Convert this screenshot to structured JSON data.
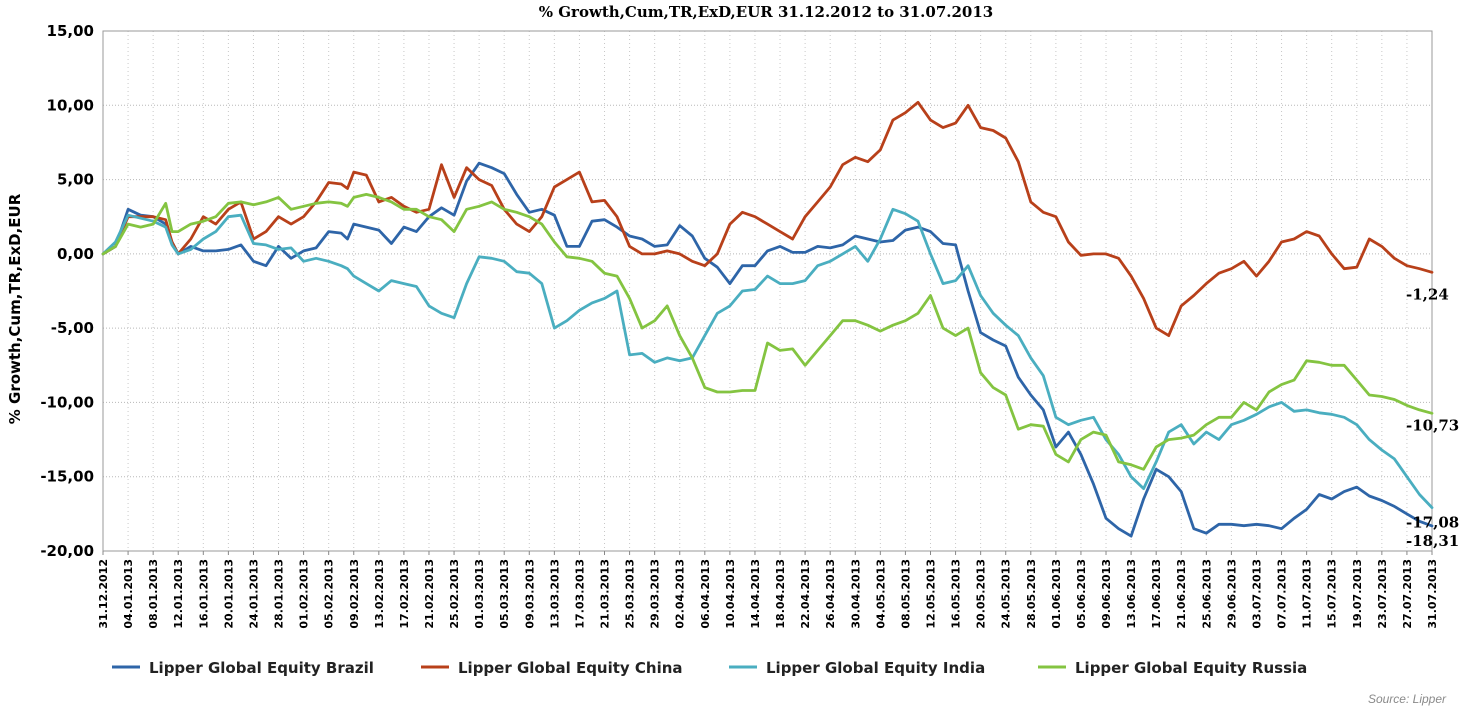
{
  "chart_data": {
    "type": "line",
    "title": "% Growth,Cum,TR,ExD,EUR 31.12.2012 to 31.07.2013",
    "ylabel": "% Growth,Cum,TR,ExD,EUR",
    "xlabel": "",
    "ylim": [
      -20,
      15
    ],
    "yticks": [
      15,
      10,
      5,
      0,
      -5,
      -10,
      -15,
      -20
    ],
    "ytick_labels": [
      "15,00",
      "10,00",
      "5,00",
      "0,00",
      "-5,00",
      "-10,00",
      "-15,00",
      "-20,00"
    ],
    "x_start_day": 0,
    "x_end_day": 212,
    "xtick_labels": [
      "31.12.2012",
      "04.01.2013",
      "08.01.2013",
      "12.01.2013",
      "16.01.2013",
      "20.01.2013",
      "24.01.2013",
      "28.01.2013",
      "01.02.2013",
      "05.02.2013",
      "09.02.2013",
      "13.02.2013",
      "17.02.2013",
      "21.02.2013",
      "25.02.2013",
      "01.03.2013",
      "05.03.2013",
      "09.03.2013",
      "13.03.2013",
      "17.03.2013",
      "21.03.2013",
      "25.03.2013",
      "29.03.2013",
      "02.04.2013",
      "06.04.2013",
      "10.04.2013",
      "14.04.2013",
      "18.04.2013",
      "22.04.2013",
      "26.04.2013",
      "30.04.2013",
      "04.05.2013",
      "08.05.2013",
      "12.05.2013",
      "16.05.2013",
      "20.05.2013",
      "24.05.2013",
      "28.05.2013",
      "01.06.2013",
      "05.06.2013",
      "09.06.2013",
      "13.06.2013",
      "17.06.2013",
      "21.06.2013",
      "25.06.2013",
      "29.06.2013",
      "03.07.2013",
      "07.07.2013",
      "11.07.2013",
      "15.07.2013",
      "19.07.2013",
      "23.07.2013",
      "27.07.2013",
      "31.07.2013"
    ],
    "grid": true,
    "legend_position": "bottom",
    "series": [
      {
        "name": "Lipper Global Equity Brazil",
        "color": "#2e65a8",
        "end_label": "-18,31",
        "x": [
          0,
          2,
          4,
          6,
          8,
          10,
          11,
          12,
          14,
          16,
          18,
          20,
          22,
          24,
          26,
          28,
          30,
          32,
          34,
          36,
          38,
          39,
          40,
          42,
          44,
          46,
          48,
          50,
          52,
          54,
          56,
          58,
          60,
          62,
          64,
          66,
          68,
          70,
          72,
          74,
          76,
          78,
          80,
          82,
          84,
          86,
          88,
          90,
          92,
          94,
          96,
          98,
          100,
          102,
          104,
          106,
          108,
          110,
          112,
          114,
          116,
          118,
          120,
          122,
          124,
          126,
          128,
          130,
          132,
          134,
          136,
          138,
          140,
          142,
          144,
          146,
          148,
          150,
          152,
          154,
          156,
          158,
          160,
          162,
          164,
          166,
          168,
          170,
          172,
          174,
          176,
          178,
          180,
          182,
          184,
          186,
          188,
          190,
          192,
          194,
          196,
          198,
          200,
          202,
          204,
          206,
          208,
          210,
          212
        ],
        "y": [
          0,
          0.5,
          3.0,
          2.6,
          2.5,
          2.0,
          0.8,
          0,
          0.5,
          0.2,
          0.2,
          0.3,
          0.6,
          -0.5,
          -0.8,
          0.5,
          -0.3,
          0.2,
          0.4,
          1.5,
          1.4,
          1.0,
          2.0,
          1.8,
          1.6,
          0.7,
          1.8,
          1.5,
          2.5,
          3.1,
          2.6,
          4.9,
          6.1,
          5.8,
          5.4,
          4.0,
          2.8,
          3.0,
          2.6,
          0.5,
          0.5,
          2.2,
          2.3,
          1.8,
          1.2,
          1.0,
          0.5,
          0.6,
          1.9,
          1.2,
          -0.3,
          -0.9,
          -2.0,
          -0.8,
          -0.8,
          0.2,
          0.5,
          0.1,
          0.1,
          0.5,
          0.4,
          0.6,
          1.2,
          1.0,
          0.8,
          0.9,
          1.6,
          1.8,
          1.5,
          0.7,
          0.6,
          -2.5,
          -5.3,
          -5.8,
          -6.2,
          -8.3,
          -9.5,
          -10.5,
          -13.0,
          -12.0,
          -13.5,
          -15.5,
          -17.8,
          -18.5,
          -19.0,
          -16.5,
          -14.5,
          -15.0,
          -16.0,
          -18.5,
          -18.8,
          -18.2,
          -18.2,
          -18.3,
          -18.2,
          -18.3,
          -18.5,
          -17.8,
          -17.2,
          -16.2,
          -16.5,
          -16.0,
          -15.7,
          -16.3,
          -16.6,
          -17.0,
          -17.5,
          -18.0,
          -18.31
        ]
      },
      {
        "name": "Lipper Global Equity China",
        "color": "#b8401a",
        "end_label": "-1,24",
        "x": [
          0,
          2,
          4,
          6,
          8,
          10,
          11,
          12,
          14,
          16,
          18,
          20,
          22,
          24,
          26,
          28,
          30,
          32,
          34,
          36,
          38,
          39,
          40,
          42,
          44,
          46,
          48,
          50,
          52,
          54,
          56,
          58,
          60,
          62,
          64,
          66,
          68,
          70,
          72,
          74,
          76,
          78,
          80,
          82,
          84,
          86,
          88,
          90,
          92,
          94,
          96,
          98,
          100,
          102,
          104,
          106,
          108,
          110,
          112,
          114,
          116,
          118,
          120,
          122,
          124,
          126,
          128,
          130,
          132,
          134,
          136,
          138,
          140,
          142,
          144,
          146,
          148,
          150,
          152,
          154,
          156,
          158,
          160,
          162,
          164,
          166,
          168,
          170,
          172,
          174,
          176,
          178,
          180,
          182,
          184,
          186,
          188,
          190,
          192,
          194,
          196,
          198,
          200,
          202,
          204,
          206,
          208,
          210,
          212
        ],
        "y": [
          0,
          0.5,
          2.5,
          2.5,
          2.5,
          2.3,
          0.8,
          0,
          1.0,
          2.5,
          2.0,
          3.0,
          3.5,
          1.0,
          1.5,
          2.5,
          2.0,
          2.5,
          3.5,
          4.8,
          4.7,
          4.4,
          5.5,
          5.3,
          3.5,
          3.8,
          3.2,
          2.8,
          3.0,
          6.0,
          3.8,
          5.8,
          5.0,
          4.6,
          3.0,
          2.0,
          1.5,
          2.5,
          4.5,
          5.0,
          5.5,
          3.5,
          3.6,
          2.5,
          0.5,
          0,
          0,
          0.2,
          0,
          -0.5,
          -0.8,
          0,
          2.0,
          2.8,
          2.5,
          2.0,
          1.5,
          1.0,
          2.5,
          3.5,
          4.5,
          6.0,
          6.5,
          6.2,
          7.0,
          9.0,
          9.5,
          10.2,
          9.0,
          8.5,
          8.8,
          10.0,
          8.5,
          8.3,
          7.8,
          6.2,
          3.5,
          2.8,
          2.5,
          0.8,
          -0.1,
          0,
          0,
          -0.3,
          -1.5,
          -3.0,
          -5.0,
          -5.5,
          -3.5,
          -2.8,
          -2.0,
          -1.3,
          -1.0,
          -0.5,
          -1.5,
          -0.5,
          0.8,
          1.0,
          1.5,
          1.2,
          0,
          -1.0,
          -0.9,
          1.0,
          0.5,
          -0.3,
          -0.8,
          -1.0,
          -1.24
        ]
      },
      {
        "name": "Lipper Global Equity India",
        "color": "#4aaec0",
        "end_label": "-17,08",
        "x": [
          0,
          2,
          4,
          6,
          8,
          10,
          11,
          12,
          14,
          16,
          18,
          20,
          22,
          24,
          26,
          28,
          30,
          32,
          34,
          36,
          38,
          39,
          40,
          42,
          44,
          46,
          48,
          50,
          52,
          54,
          56,
          58,
          60,
          62,
          64,
          66,
          68,
          70,
          72,
          74,
          76,
          78,
          80,
          82,
          84,
          86,
          88,
          90,
          92,
          94,
          96,
          98,
          100,
          102,
          104,
          106,
          108,
          110,
          112,
          114,
          116,
          118,
          120,
          122,
          124,
          126,
          128,
          130,
          132,
          134,
          136,
          138,
          140,
          142,
          144,
          146,
          148,
          150,
          152,
          154,
          156,
          158,
          160,
          162,
          164,
          166,
          168,
          170,
          172,
          174,
          176,
          178,
          180,
          182,
          184,
          186,
          188,
          190,
          192,
          194,
          196,
          198,
          200,
          202,
          204,
          206,
          208,
          210,
          212
        ],
        "y": [
          0,
          0.8,
          2.6,
          2.4,
          2.2,
          1.8,
          0.6,
          0,
          0.3,
          1.0,
          1.5,
          2.5,
          2.6,
          0.7,
          0.6,
          0.3,
          0.4,
          -0.5,
          -0.3,
          -0.5,
          -0.8,
          -1.0,
          -1.5,
          -2.0,
          -2.5,
          -1.8,
          -2.0,
          -2.2,
          -3.5,
          -4.0,
          -4.3,
          -2.0,
          -0.2,
          -0.3,
          -0.5,
          -1.2,
          -1.3,
          -2.0,
          -5.0,
          -4.5,
          -3.8,
          -3.3,
          -3.0,
          -2.5,
          -6.8,
          -6.7,
          -7.3,
          -7.0,
          -7.2,
          -7.0,
          -5.5,
          -4.0,
          -3.5,
          -2.5,
          -2.4,
          -1.5,
          -2.0,
          -2.0,
          -1.8,
          -0.8,
          -0.5,
          0,
          0.5,
          -0.5,
          1.0,
          3.0,
          2.7,
          2.2,
          0,
          -2.0,
          -1.8,
          -0.8,
          -2.8,
          -4.0,
          -4.8,
          -5.5,
          -7.0,
          -8.2,
          -11.0,
          -11.5,
          -11.2,
          -11.0,
          -12.5,
          -13.5,
          -15.0,
          -15.8,
          -14.0,
          -12.0,
          -11.5,
          -12.8,
          -12.0,
          -12.5,
          -11.5,
          -11.2,
          -10.8,
          -10.3,
          -10.0,
          -10.6,
          -10.5,
          -10.7,
          -10.8,
          -11.0,
          -11.5,
          -12.5,
          -13.2,
          -13.8,
          -15.0,
          -16.2,
          -17.08
        ]
      },
      {
        "name": "Lipper Global Equity Russia",
        "color": "#84c441",
        "end_label": "-10,73",
        "x": [
          0,
          2,
          4,
          6,
          8,
          10,
          11,
          12,
          14,
          16,
          18,
          20,
          22,
          24,
          26,
          28,
          30,
          32,
          34,
          36,
          38,
          39,
          40,
          42,
          44,
          46,
          48,
          50,
          52,
          54,
          56,
          58,
          60,
          62,
          64,
          66,
          68,
          70,
          72,
          74,
          76,
          78,
          80,
          82,
          84,
          86,
          88,
          90,
          92,
          94,
          96,
          98,
          100,
          102,
          104,
          106,
          108,
          110,
          112,
          114,
          116,
          118,
          120,
          122,
          124,
          126,
          128,
          130,
          132,
          134,
          136,
          138,
          140,
          142,
          144,
          146,
          148,
          150,
          152,
          154,
          156,
          158,
          160,
          162,
          164,
          166,
          168,
          170,
          172,
          174,
          176,
          178,
          180,
          182,
          184,
          186,
          188,
          190,
          192,
          194,
          196,
          198,
          200,
          202,
          204,
          206,
          208,
          210,
          212
        ],
        "y": [
          0,
          0.5,
          2.0,
          1.8,
          2.0,
          3.4,
          1.5,
          1.5,
          2.0,
          2.2,
          2.5,
          3.4,
          3.5,
          3.3,
          3.5,
          3.8,
          3.0,
          3.2,
          3.4,
          3.5,
          3.4,
          3.2,
          3.8,
          4.0,
          3.8,
          3.5,
          3.0,
          3.0,
          2.5,
          2.3,
          1.5,
          3.0,
          3.2,
          3.5,
          3.0,
          2.8,
          2.5,
          2.0,
          0.8,
          -0.2,
          -0.3,
          -0.5,
          -1.3,
          -1.5,
          -3.0,
          -5.0,
          -4.5,
          -3.5,
          -5.5,
          -7.0,
          -9.0,
          -9.3,
          -9.3,
          -9.2,
          -9.2,
          -6.0,
          -6.5,
          -6.4,
          -7.5,
          -6.5,
          -5.5,
          -4.5,
          -4.5,
          -4.8,
          -5.2,
          -4.8,
          -4.5,
          -4.0,
          -2.8,
          -5.0,
          -5.5,
          -5.0,
          -8.0,
          -9.0,
          -9.5,
          -11.8,
          -11.5,
          -11.6,
          -13.5,
          -14.0,
          -12.5,
          -12.0,
          -12.2,
          -14.0,
          -14.2,
          -14.5,
          -13.0,
          -12.5,
          -12.4,
          -12.2,
          -11.5,
          -11.0,
          -11.0,
          -10.0,
          -10.5,
          -9.3,
          -8.8,
          -8.5,
          -7.2,
          -7.3,
          -7.5,
          -7.5,
          -8.5,
          -9.5,
          -9.6,
          -9.8,
          -10.2,
          -10.5,
          -10.73
        ]
      }
    ]
  },
  "source": "Source: Lipper"
}
